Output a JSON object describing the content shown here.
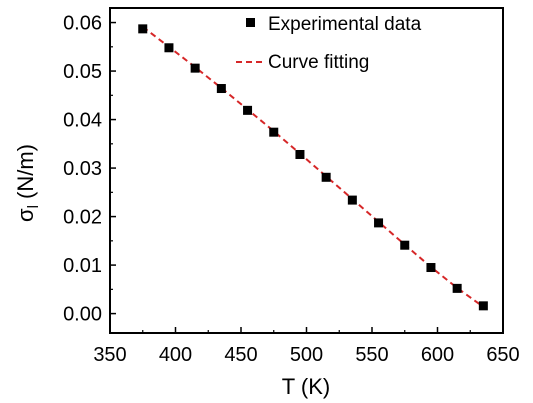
{
  "chart_data": {
    "type": "scatter",
    "title": "",
    "xlabel": "T (K)",
    "ylabel": "σ",
    "ylabel_subscript": "l",
    "ylabel_unit": " (N/m)",
    "xlim": [
      350,
      650
    ],
    "ylim": [
      -0.004,
      0.063
    ],
    "xticks": [
      350,
      400,
      450,
      500,
      550,
      600,
      650
    ],
    "yticks": [
      0.0,
      0.01,
      0.02,
      0.03,
      0.04,
      0.05,
      0.06
    ],
    "ytick_labels": [
      "0.00",
      "0.01",
      "0.02",
      "0.03",
      "0.04",
      "0.05",
      "0.06"
    ],
    "grid": false,
    "legend_position": "top-right",
    "series": [
      {
        "name": "Experimental data",
        "kind": "markers",
        "marker": "square",
        "color": "#000000",
        "x": [
          375,
          395,
          415,
          435,
          455,
          475,
          495,
          515,
          535,
          555,
          575,
          595,
          615,
          635
        ],
        "y": [
          0.0587,
          0.0548,
          0.0506,
          0.0464,
          0.0419,
          0.0374,
          0.0328,
          0.0281,
          0.0234,
          0.0187,
          0.0141,
          0.0095,
          0.0052,
          0.0016
        ]
      },
      {
        "name": "Curve fitting",
        "kind": "line",
        "style": "dashed",
        "color": "#d62728",
        "x": [
          375,
          395,
          415,
          435,
          455,
          475,
          495,
          515,
          535,
          555,
          575,
          595,
          615,
          635
        ],
        "y": [
          0.0591,
          0.055,
          0.0508,
          0.0465,
          0.0421,
          0.0376,
          0.033,
          0.0283,
          0.0236,
          0.0189,
          0.0142,
          0.0096,
          0.0053,
          0.0014
        ]
      }
    ]
  }
}
